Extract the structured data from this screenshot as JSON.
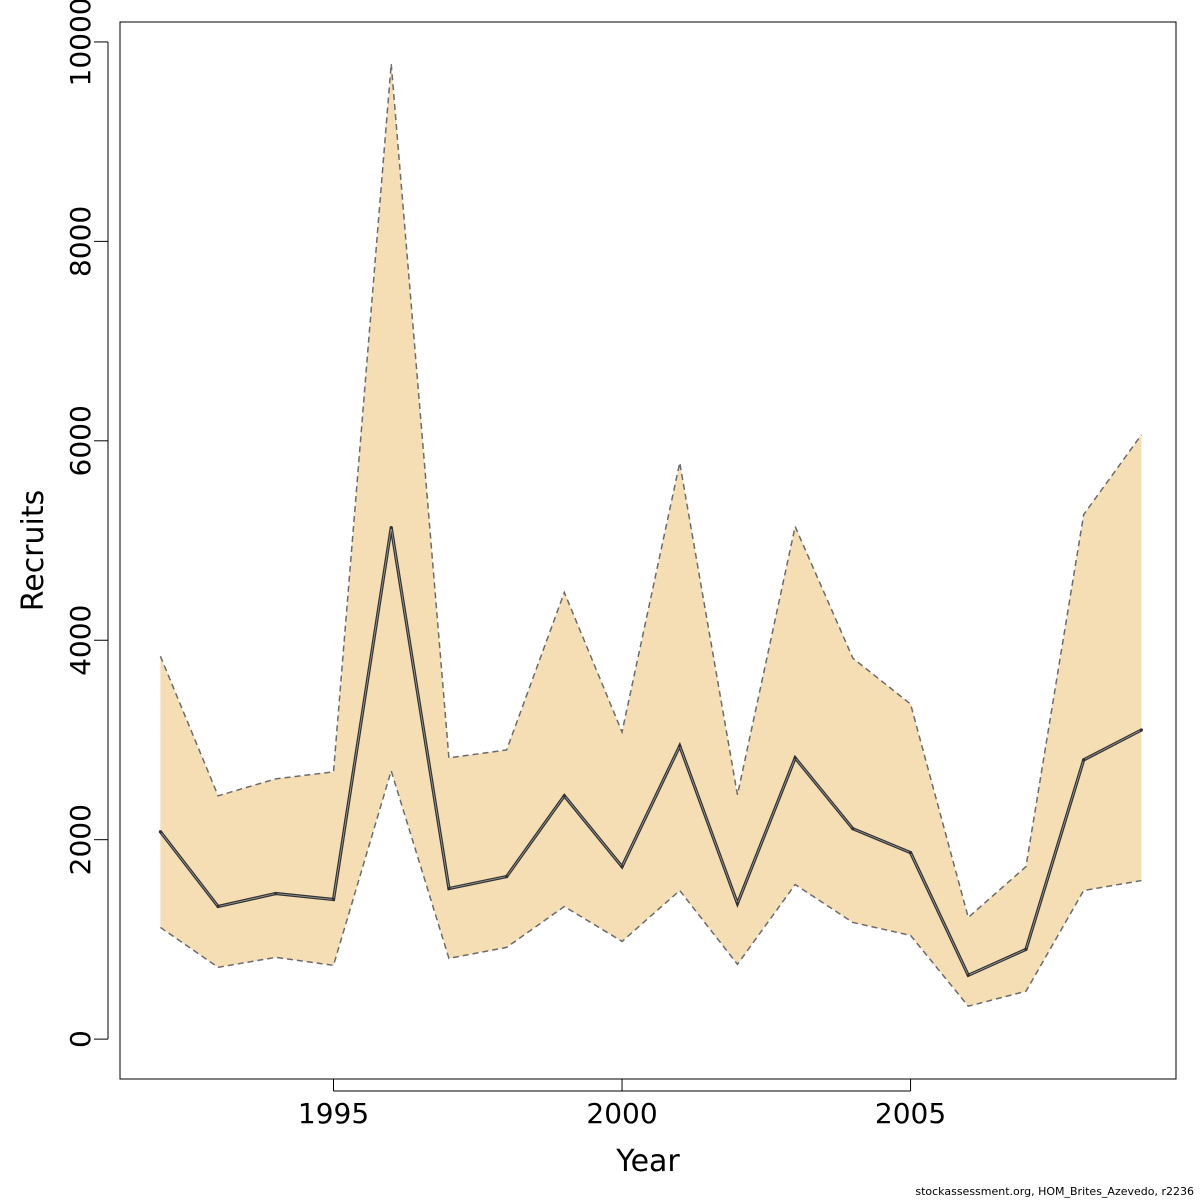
{
  "chart_data": {
    "type": "area",
    "xlabel": "Year",
    "ylabel": "Recruits",
    "xlim": [
      1991.3,
      2009.6
    ],
    "ylim": [
      -400,
      10200
    ],
    "x_ticks": [
      1995,
      2000,
      2005
    ],
    "y_ticks": [
      0,
      2000,
      4000,
      6000,
      8000,
      10000
    ],
    "grid": false,
    "x": [
      1992,
      1993,
      1994,
      1995,
      1996,
      1997,
      1998,
      1999,
      2000,
      2001,
      2002,
      2003,
      2004,
      2005,
      2006,
      2007,
      2008,
      2009
    ],
    "series": [
      {
        "role": "estimate",
        "values": [
          2080,
          1330,
          1460,
          1400,
          5130,
          1510,
          1630,
          2440,
          1730,
          2940,
          1360,
          2820,
          2110,
          1870,
          640,
          900,
          2800,
          3100
        ]
      },
      {
        "role": "upper",
        "values": [
          3840,
          2440,
          2610,
          2680,
          9780,
          2820,
          2900,
          4480,
          3080,
          5780,
          2450,
          5140,
          3820,
          3360,
          1220,
          1730,
          5260,
          6060
        ]
      },
      {
        "role": "lower",
        "values": [
          1120,
          720,
          820,
          740,
          2690,
          810,
          920,
          1330,
          980,
          1490,
          750,
          1550,
          1170,
          1040,
          330,
          480,
          1490,
          1590
        ]
      }
    ],
    "colors": {
      "band": "#f5deb3",
      "band_edge": "#6b6b6b",
      "line": "#333333",
      "axis": "#000000"
    }
  },
  "footer": "stockassessment.org, HOM_Brites_Azevedo, r2236"
}
